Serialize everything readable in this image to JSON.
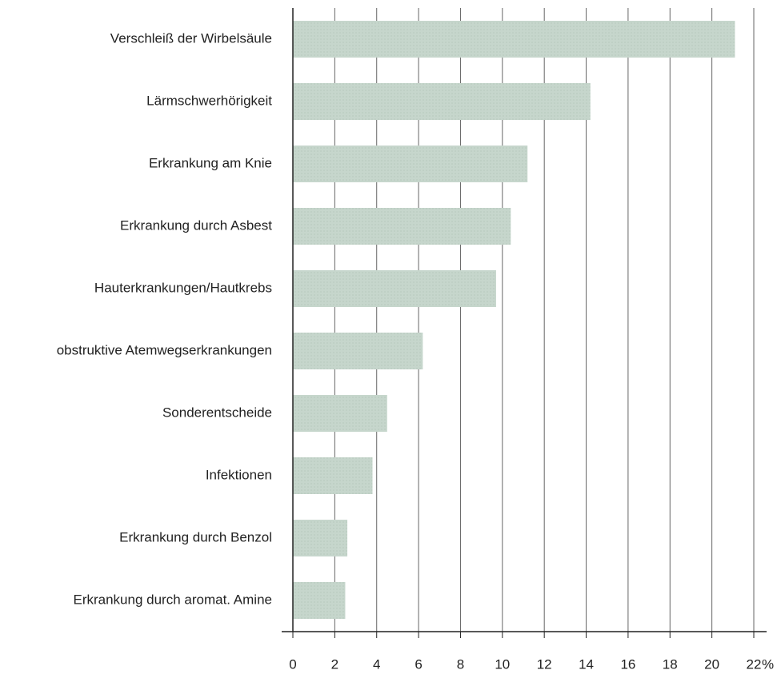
{
  "chart_data": {
    "type": "barh",
    "categories": [
      "Verschleiß der Wirbelsäule",
      "Lärmschwerhörigkeit",
      "Erkrankung am Knie",
      "Erkrankung durch Asbest",
      "Hauterkrankungen/Hautkrebs",
      "obstruktive Atemwegserkrankungen",
      "Sonderentscheide",
      "Infektionen",
      "Erkrankung durch Benzol",
      "Erkrankung durch aromat. Amine"
    ],
    "values": [
      21.1,
      14.2,
      11.2,
      10.4,
      9.7,
      6.2,
      4.5,
      3.8,
      2.6,
      2.5
    ],
    "color": "#c6d6cc",
    "xlabel": "%",
    "xlim": [
      0,
      22
    ],
    "xticks": [
      0,
      2,
      4,
      6,
      8,
      10,
      12,
      14,
      16,
      18,
      20,
      22
    ],
    "grid": true
  }
}
